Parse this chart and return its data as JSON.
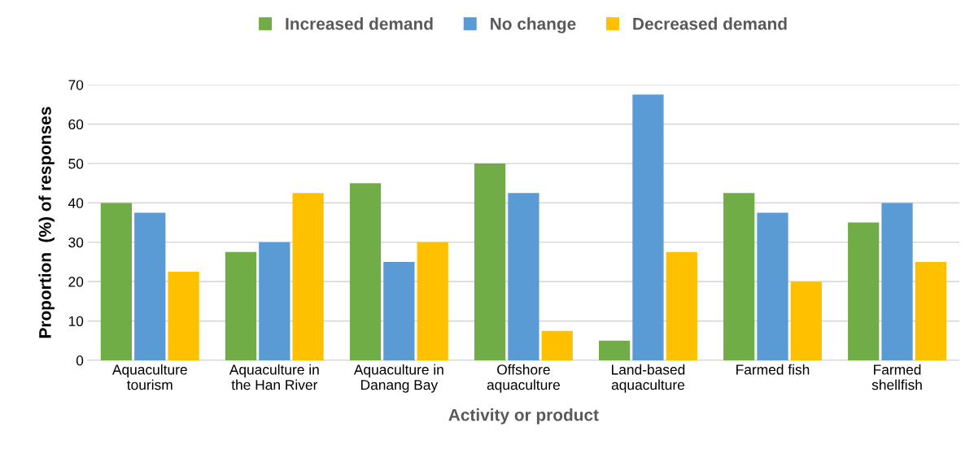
{
  "chart_data": {
    "type": "bar",
    "categories": [
      "Aquaculture\ntourism",
      "Aquaculture in\nthe Han River",
      "Aquaculture in\nDanang Bay",
      "Offshore\naquaculture",
      "Land-based\naquaculture",
      "Farmed fish",
      "Farmed\nshellfish"
    ],
    "series": [
      {
        "name": "Increased demand",
        "color": "#70ad47",
        "values": [
          40,
          27.5,
          45,
          50,
          5,
          42.5,
          35
        ]
      },
      {
        "name": "No change",
        "color": "#5b9bd5",
        "values": [
          37.5,
          30,
          25,
          42.5,
          67.5,
          37.5,
          40
        ]
      },
      {
        "name": "Decreased demand",
        "color": "#ffc000",
        "values": [
          22.5,
          42.5,
          30,
          7.5,
          27.5,
          20,
          25
        ]
      }
    ],
    "xlabel": "Activity or product",
    "ylabel": "Proportion  (%) of responses",
    "ylim": [
      0,
      70
    ],
    "yticks": [
      0,
      10,
      20,
      30,
      40,
      50,
      60,
      70
    ],
    "grid": "y",
    "legend": "top"
  }
}
